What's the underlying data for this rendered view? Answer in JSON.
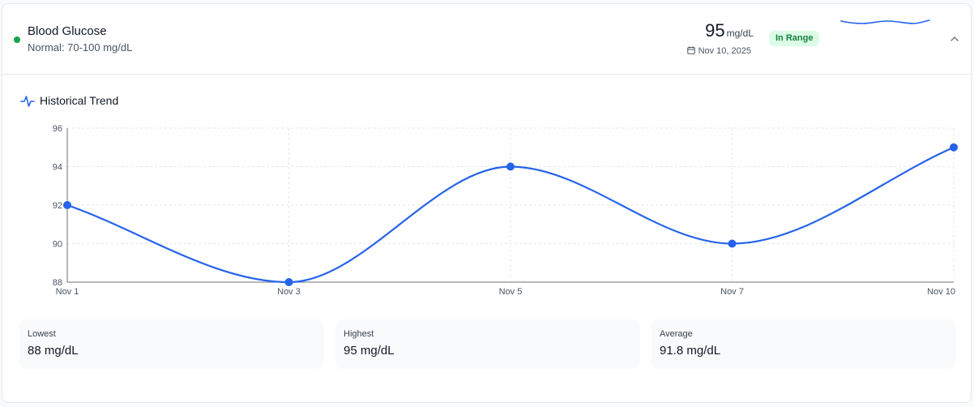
{
  "metric": {
    "name": "Blood Glucose",
    "normal_range": "Normal: 70-100 mg/dL",
    "value": "95",
    "unit": "mg/dL",
    "date": "Nov 10, 2025",
    "status": "In Range",
    "status_color": "#16a34a"
  },
  "trend": {
    "title": "Historical Trend"
  },
  "chart_data": {
    "type": "line",
    "title": "",
    "xlabel": "",
    "ylabel": "",
    "categories": [
      "Nov 1",
      "Nov 3",
      "Nov 5",
      "Nov 7",
      "Nov 10"
    ],
    "series": [
      {
        "values": [
          92,
          88,
          94,
          90,
          95
        ],
        "color": "#2563eb"
      }
    ],
    "yticks": [
      "88",
      "90",
      "92",
      "94",
      "96"
    ],
    "ylim": [
      88,
      96
    ],
    "grid": true,
    "legend": "none"
  },
  "stats": [
    {
      "label": "Lowest",
      "value": "88 mg/dL"
    },
    {
      "label": "Highest",
      "value": "95 mg/dL"
    },
    {
      "label": "Average",
      "value": "91.8 mg/dL"
    }
  ]
}
